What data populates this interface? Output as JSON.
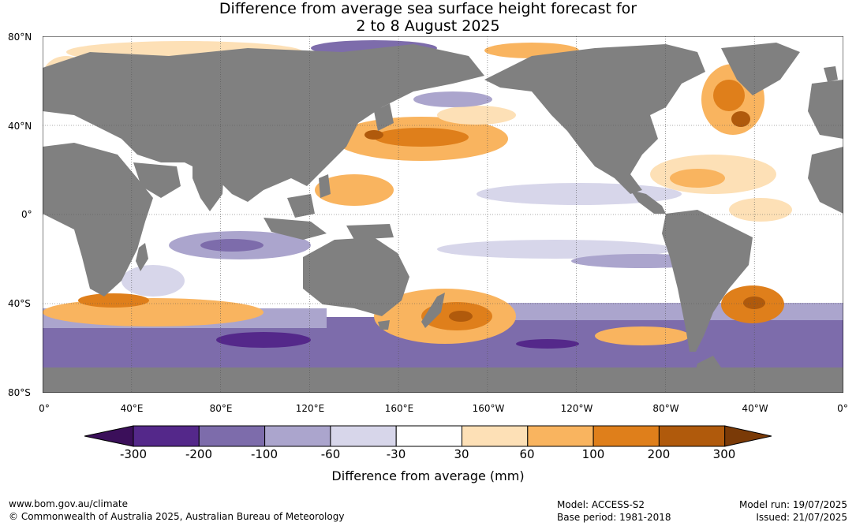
{
  "title_line1": "Difference from average sea surface height forecast for",
  "title_line2": "2 to 8 August 2025",
  "lat_labels": [
    "80°N",
    "40°N",
    "0°",
    "40°S",
    "80°S"
  ],
  "lon_labels": [
    "0°",
    "40°E",
    "80°E",
    "120°E",
    "160°E",
    "160°W",
    "120°W",
    "80°W",
    "40°W",
    "0°"
  ],
  "colorbar": {
    "title": "Difference from average (mm)",
    "ticks": [
      "-300",
      "-200",
      "-100",
      "-60",
      "-30",
      "30",
      "60",
      "100",
      "200",
      "300"
    ],
    "colors": [
      "#3b0f5a",
      "#54288a",
      "#7d6cab",
      "#aba5cd",
      "#d7d6ea",
      "#ffffff",
      "#fde0b6",
      "#f9b45f",
      "#df7f1b",
      "#b05a0c",
      "#7a3a07"
    ]
  },
  "footer": {
    "url": "www.bom.gov.au/climate",
    "copyright": "© Commonwealth of Australia 2025, Australian Bureau of Meteorology",
    "model": "Model: ACCESS-S2",
    "base_period": "Base period: 1981-2018",
    "model_run": "Model run: 19/07/2025",
    "issued": "Issued: 21/07/2025"
  },
  "land_color": "#808080"
}
